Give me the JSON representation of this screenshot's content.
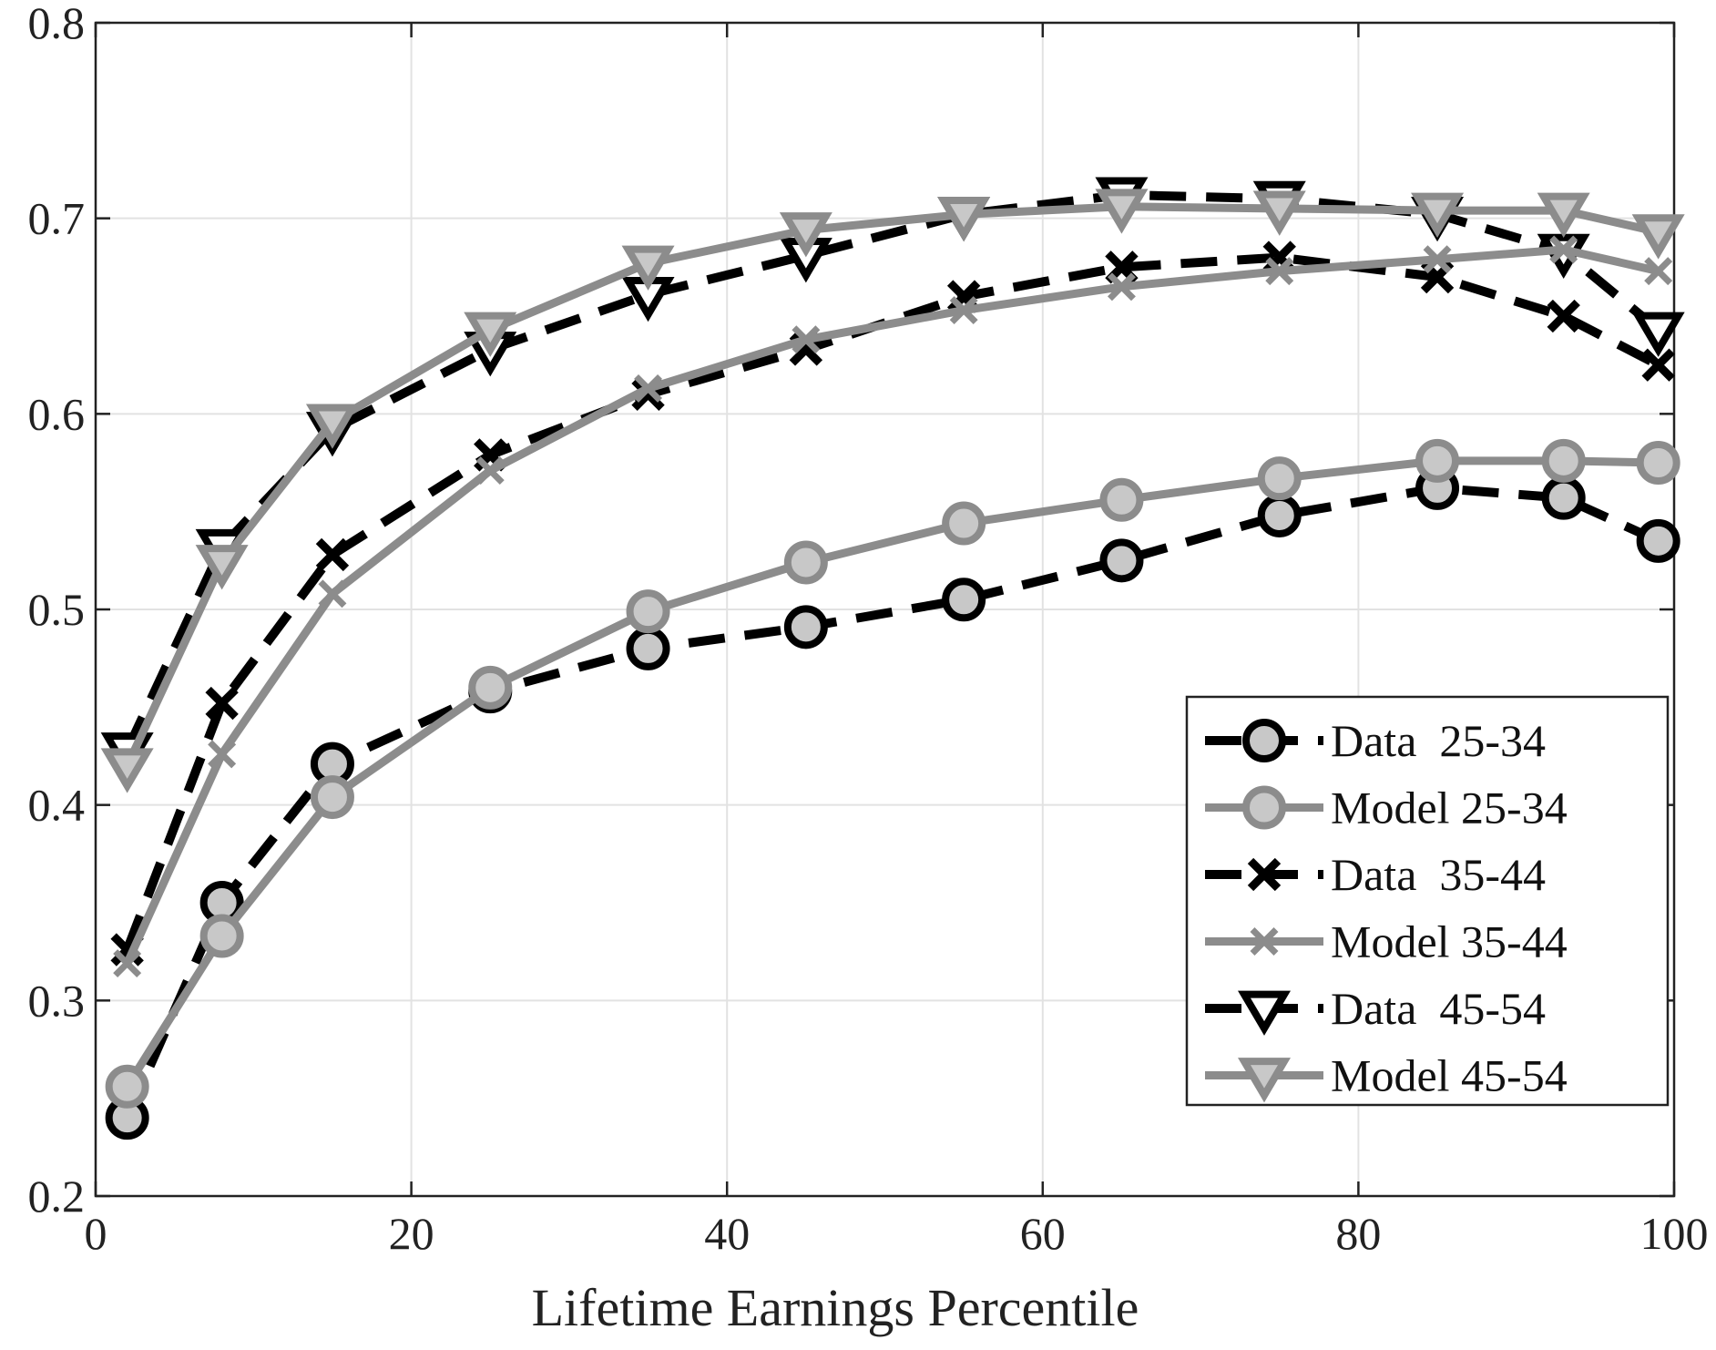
{
  "chart_data": {
    "type": "line",
    "title": "",
    "xlabel": "Lifetime Earnings Percentile",
    "ylabel": "",
    "xlim": [
      0,
      100
    ],
    "ylim": [
      0.2,
      0.8
    ],
    "xticks": [
      0,
      20,
      40,
      60,
      80,
      100
    ],
    "xtick_labels": [
      "0",
      "20",
      "40",
      "60",
      "80",
      "100"
    ],
    "yticks": [
      0.2,
      0.3,
      0.4,
      0.5,
      0.6,
      0.7,
      0.8
    ],
    "ytick_labels": [
      "0.2",
      "0.3",
      "0.4",
      "0.5",
      "0.6",
      "0.7",
      "0.8"
    ],
    "grid": true,
    "legend_position": "lower-right",
    "x": [
      2,
      8,
      15,
      25,
      35,
      45,
      55,
      65,
      75,
      85,
      93,
      99
    ],
    "series": [
      {
        "name": "Data  25-34",
        "marker": "circle",
        "style": "dashed",
        "line_color": "#000000",
        "marker_fill": "#c8c8c8",
        "values": [
          0.24,
          0.35,
          0.421,
          0.458,
          0.48,
          0.491,
          0.505,
          0.525,
          0.548,
          0.562,
          0.557,
          0.535
        ]
      },
      {
        "name": "Model 25-34",
        "marker": "circle",
        "style": "solid",
        "line_color": "#8c8c8c",
        "marker_fill": "#c8c8c8",
        "values": [
          0.256,
          0.333,
          0.404,
          0.46,
          0.499,
          0.524,
          0.544,
          0.556,
          0.567,
          0.576,
          0.576,
          0.575
        ]
      },
      {
        "name": "Data  35-44",
        "marker": "x",
        "style": "dashed",
        "line_color": "#000000",
        "marker_fill": "none",
        "values": [
          0.326,
          0.452,
          0.528,
          0.579,
          0.61,
          0.633,
          0.66,
          0.675,
          0.68,
          0.67,
          0.65,
          0.625
        ]
      },
      {
        "name": "Model 35-44",
        "marker": "x",
        "style": "solid",
        "line_color": "#8c8c8c",
        "marker_fill": "none",
        "values": [
          0.319,
          0.426,
          0.508,
          0.571,
          0.613,
          0.638,
          0.653,
          0.665,
          0.673,
          0.679,
          0.684,
          0.673
        ]
      },
      {
        "name": "Data  45-54",
        "marker": "triangle-down",
        "style": "dashed",
        "line_color": "#000000",
        "marker_fill": "#ffffff",
        "values": [
          0.428,
          0.532,
          0.592,
          0.633,
          0.661,
          0.681,
          0.702,
          0.712,
          0.71,
          0.702,
          0.683,
          0.643
        ]
      },
      {
        "name": "Model 45-54",
        "marker": "triangle-down",
        "style": "solid",
        "line_color": "#8c8c8c",
        "marker_fill": "#c8c8c8",
        "values": [
          0.42,
          0.524,
          0.596,
          0.643,
          0.677,
          0.694,
          0.702,
          0.706,
          0.705,
          0.704,
          0.704,
          0.693
        ]
      }
    ]
  }
}
